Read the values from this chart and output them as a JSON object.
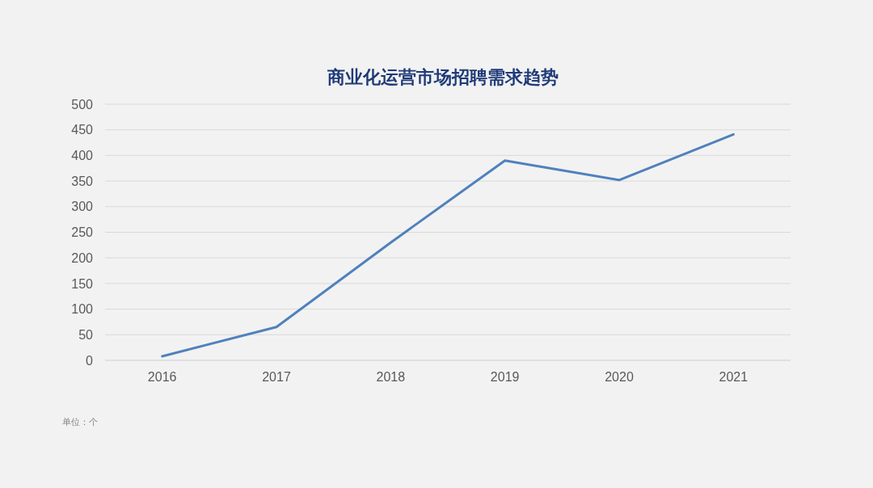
{
  "chart_data": {
    "type": "line",
    "title": "商业化运营市场招聘需求趋势",
    "categories": [
      "2016",
      "2017",
      "2018",
      "2019",
      "2020",
      "2021"
    ],
    "series": [
      {
        "color": "#4f81bd",
        "values": [
          8,
          65,
          230,
          390,
          352,
          441
        ]
      }
    ],
    "ylim": [
      0,
      500
    ],
    "yticks": [
      0,
      50,
      100,
      150,
      200,
      250,
      300,
      350,
      400,
      450,
      500
    ],
    "grid": "y",
    "marker": "none",
    "line_style": "solid",
    "annotations": [
      "单位：个"
    ]
  }
}
